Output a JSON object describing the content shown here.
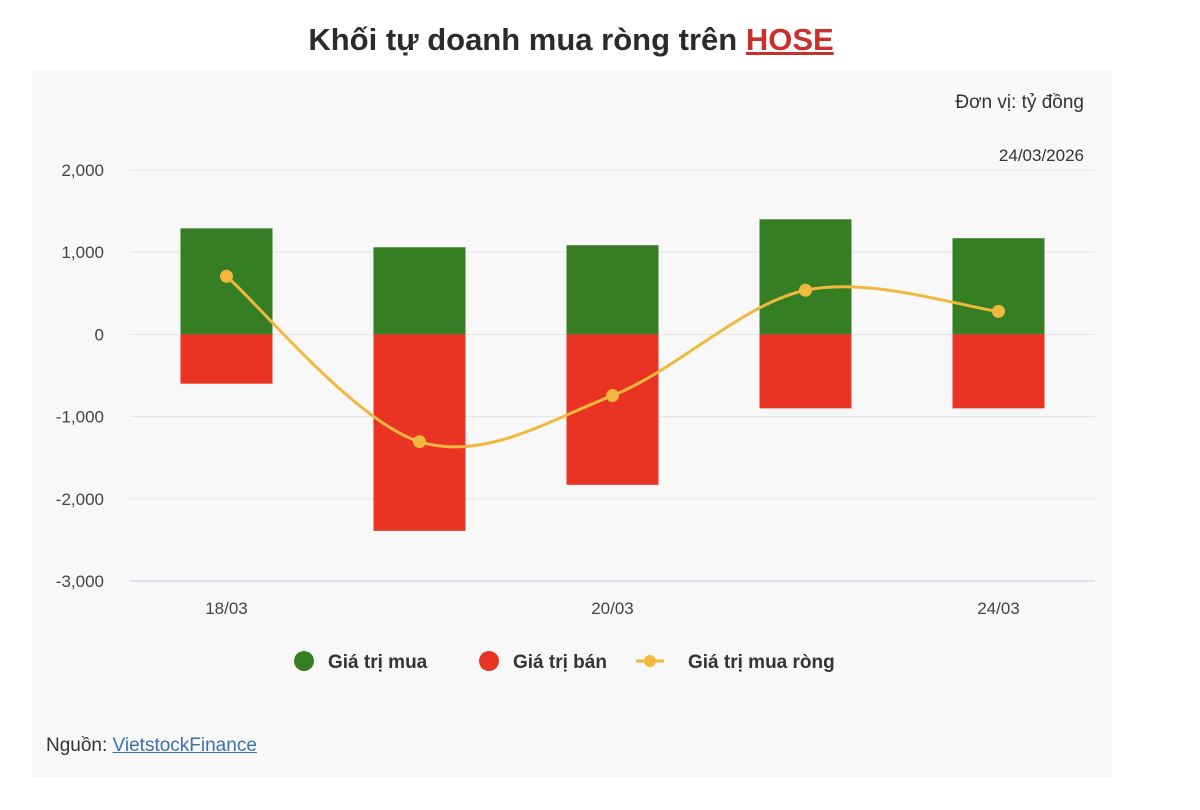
{
  "title": {
    "text": "Khối tự doanh mua ròng trên ",
    "highlight": "HOSE",
    "highlight_color": "#c9302c"
  },
  "unit_label": "Đơn vị: tỷ đồng",
  "date_label": "24/03/2026",
  "source": {
    "label": "Nguồn: ",
    "link": "VietstockFinance"
  },
  "chart_data": {
    "type": "bar",
    "categories": [
      "18/03",
      "",
      "20/03",
      "",
      "24/03"
    ],
    "yticks": [
      "2,000",
      "1,000",
      "0",
      "-1,000",
      "-2,000",
      "-3,000"
    ],
    "ylim": [
      -3000,
      2000
    ],
    "grid": true,
    "legend_placement": "bottom",
    "series": [
      {
        "name": "Giá trị mua",
        "type": "bar",
        "color": "#367e24",
        "values": [
          1290,
          1060,
          1085,
          1400,
          1170
        ]
      },
      {
        "name": "Giá trị bán",
        "type": "bar",
        "color": "#e93323",
        "values": [
          -600,
          -2390,
          -1830,
          -900,
          -900
        ]
      },
      {
        "name": "Giá trị mua ròng",
        "type": "line",
        "color": "#f2b73f",
        "values": [
          707,
          -1305,
          -744,
          537,
          280
        ]
      }
    ]
  }
}
